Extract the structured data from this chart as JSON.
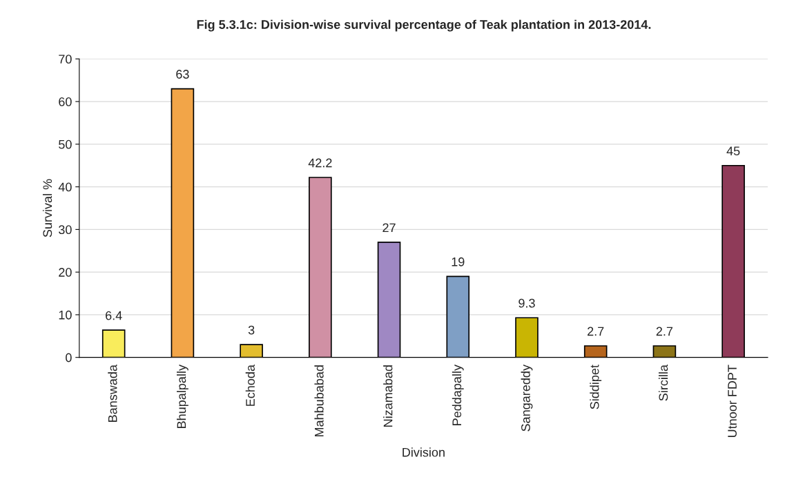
{
  "chart_data": {
    "type": "bar",
    "title": "Fig 5.3.1c: Division-wise survival percentage of Teak plantation in 2013-2014.",
    "xlabel": "Division",
    "ylabel": "Survival %",
    "categories": [
      "Banswada",
      "Bhupalpally",
      "Echoda",
      "Mahbubabad",
      "Nizamabad",
      "Peddapally",
      "Sangareddy",
      "Siddipet",
      "Sircilla",
      "Utnoor FDPT"
    ],
    "values": [
      6.4,
      63,
      3,
      42.2,
      27,
      19,
      9.3,
      2.7,
      2.7,
      45
    ],
    "colors": [
      "#f9ec5c",
      "#f2a548",
      "#e3bd2e",
      "#d090a4",
      "#9f88c3",
      "#7f9fc5",
      "#c9b503",
      "#b5641c",
      "#8c7418",
      "#8f3b59"
    ],
    "ylim": [
      0,
      70
    ],
    "yticks": [
      0,
      10,
      20,
      30,
      40,
      50,
      60,
      70
    ],
    "grid": "y",
    "data_labels": true,
    "legend": false
  }
}
